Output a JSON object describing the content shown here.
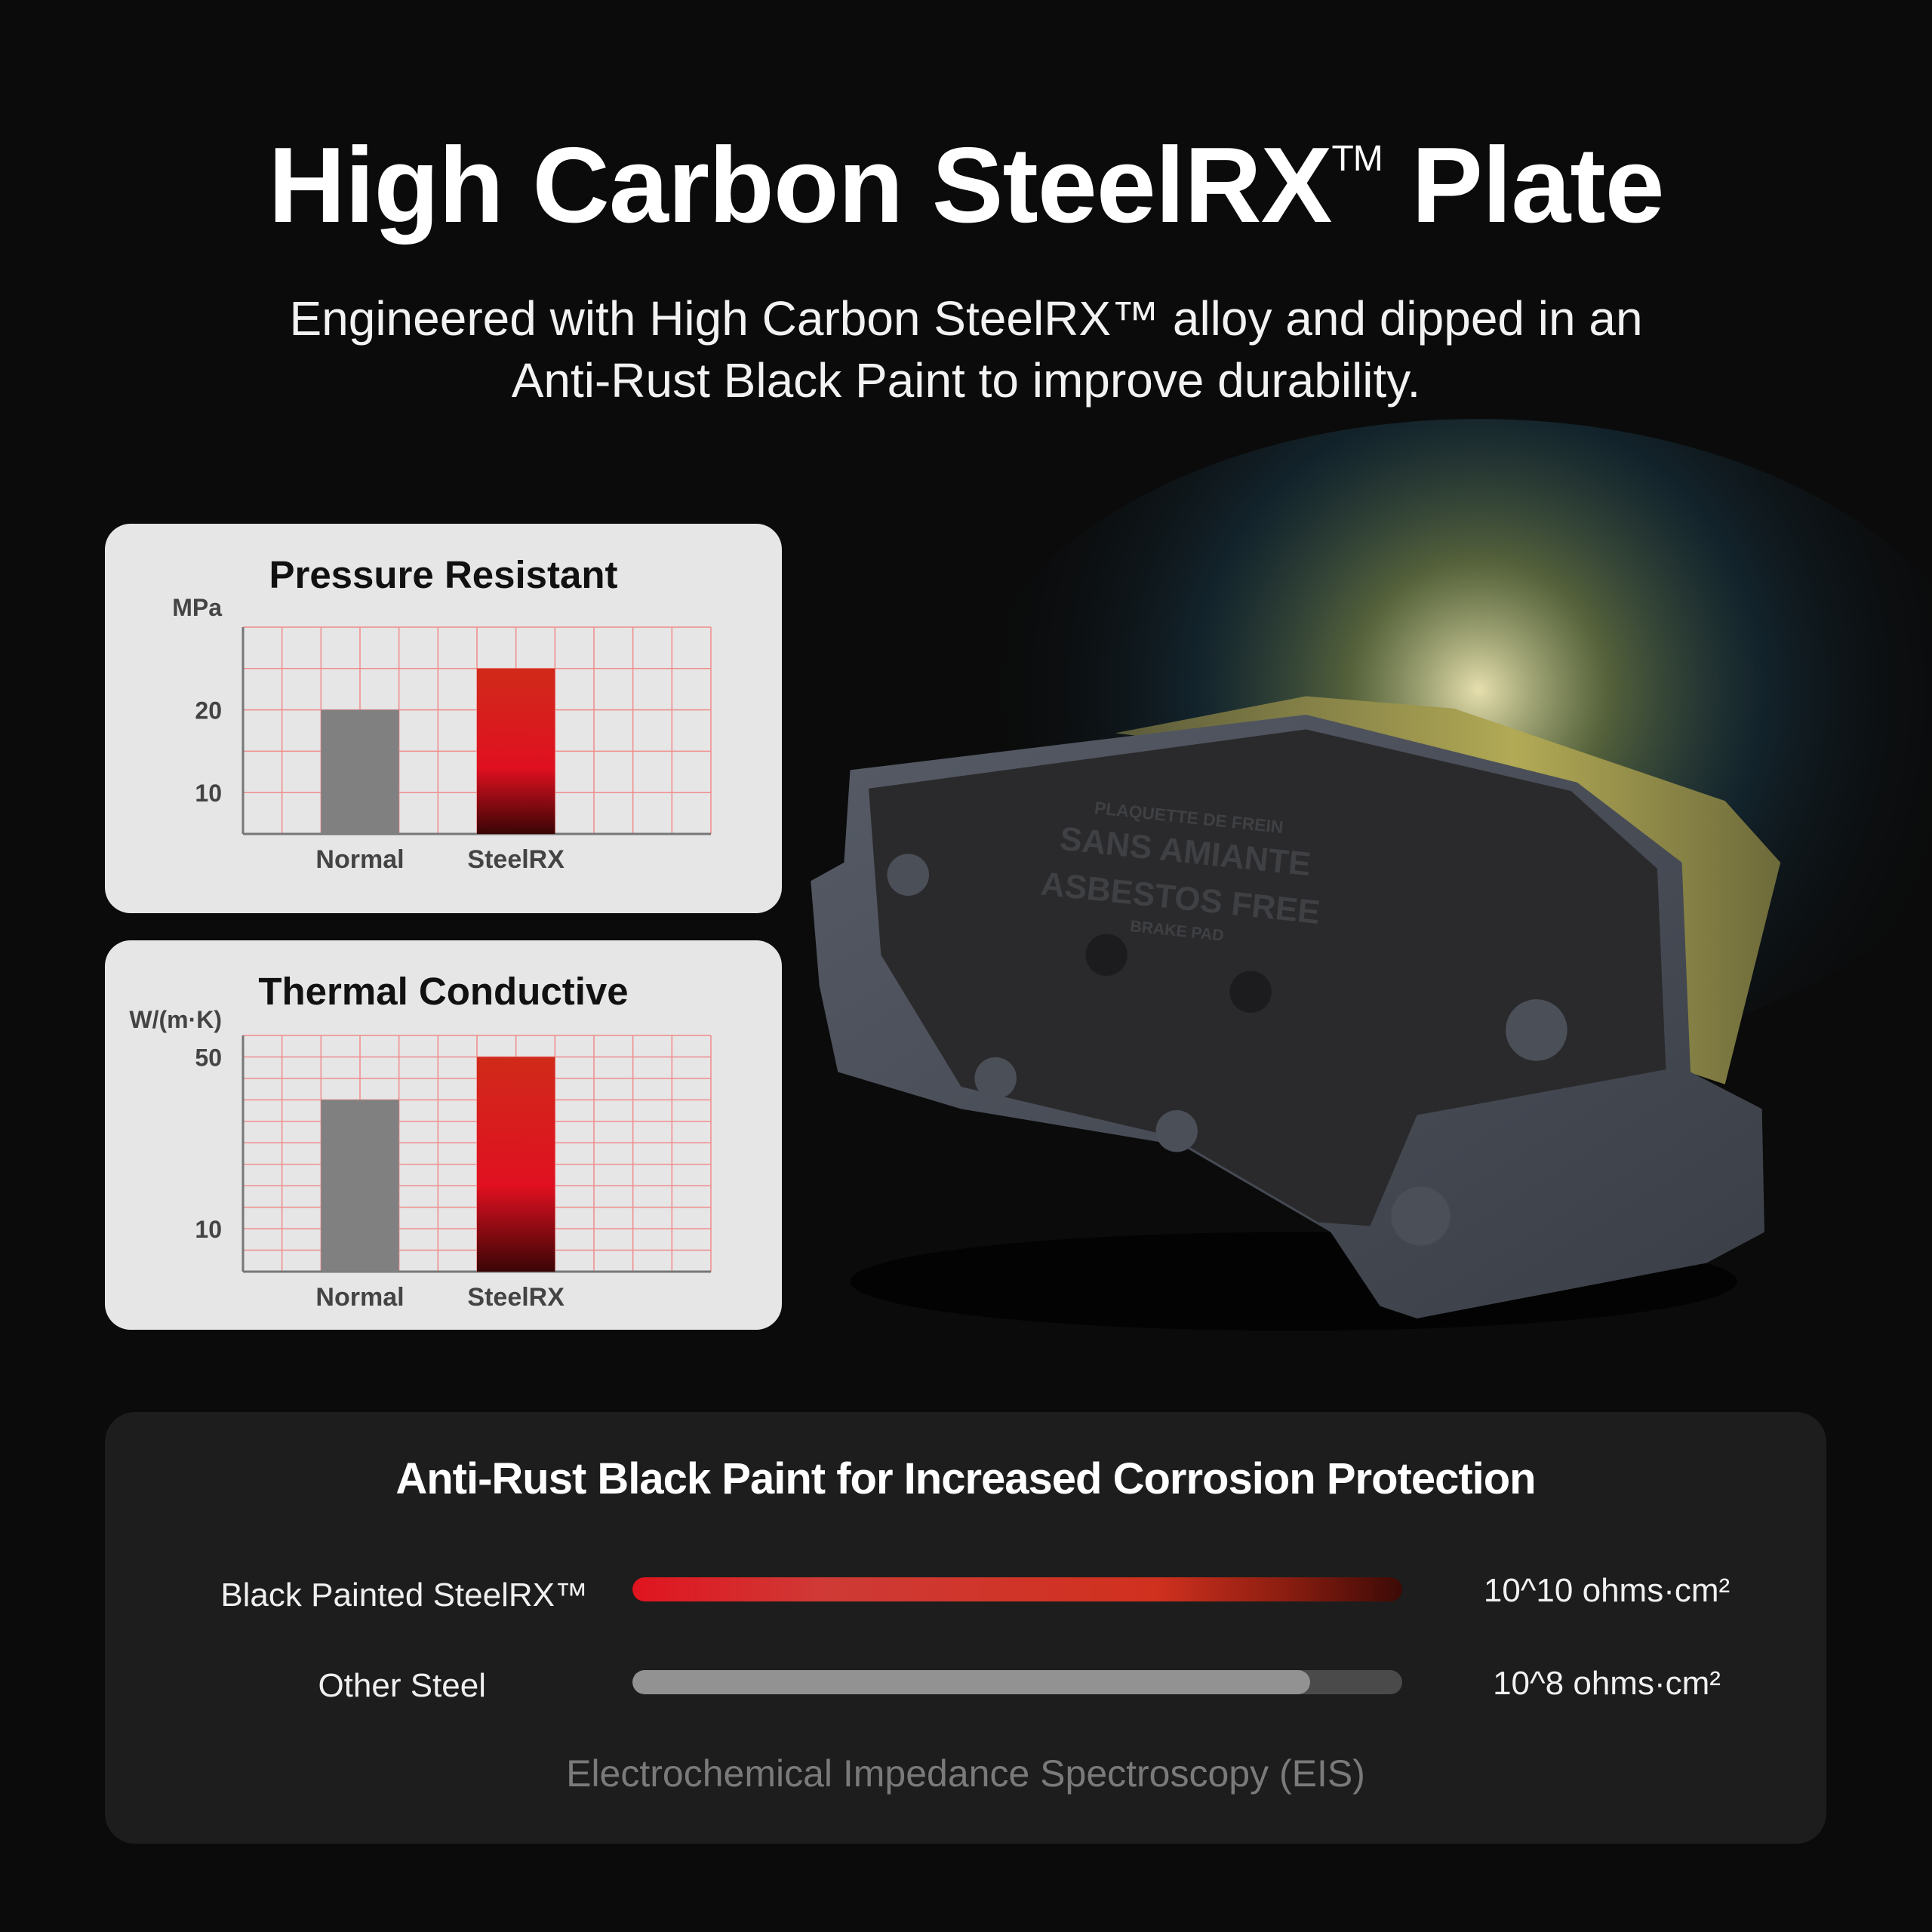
{
  "header": {
    "title": "High Carbon SteelRX",
    "title_mark": "TM",
    "title_suffix": "Plate",
    "subtitle_line1": "Engineered with High Carbon SteelRX™ alloy and dipped in an",
    "subtitle_line2": "Anti-Rust Black Paint to improve durability."
  },
  "product_image": {
    "stamp_lines": [
      "PLAQUETTE DE FREIN",
      "SANS AMIANTE",
      "ASBESTOS FREE",
      "BRAKE PAD"
    ]
  },
  "chart_data": [
    {
      "type": "bar",
      "title": "Pressure Resistant",
      "ylabel": "MPa",
      "categories": [
        "Normal",
        "SteelRX"
      ],
      "values": [
        20,
        25
      ],
      "yticks": [
        10,
        20
      ],
      "ylim": [
        5,
        30
      ],
      "grid": true,
      "colors": [
        "#808080",
        "#d42b1e"
      ]
    },
    {
      "type": "bar",
      "title": "Thermal Conductive",
      "ylabel": "W/(m·K)",
      "categories": [
        "Normal",
        "SteelRX"
      ],
      "values": [
        40,
        50
      ],
      "yticks": [
        10,
        50
      ],
      "ylim": [
        0,
        55
      ],
      "grid": true,
      "colors": [
        "#808080",
        "#d42b1e"
      ]
    }
  ],
  "corrosion": {
    "title": "Anti-Rust Black Paint for Increased Corrosion Protection",
    "rows": [
      {
        "label": "Black Painted SteelRX™",
        "value": "10^10 ohms·cm²",
        "fill_percent": 100,
        "color": "#e0141f"
      },
      {
        "label": "Other Steel",
        "value": "10^8 ohms·cm²",
        "fill_percent": 88,
        "color": "#929292"
      }
    ],
    "footnote": "Electrochemical Impedance Spectroscopy (EIS)"
  }
}
